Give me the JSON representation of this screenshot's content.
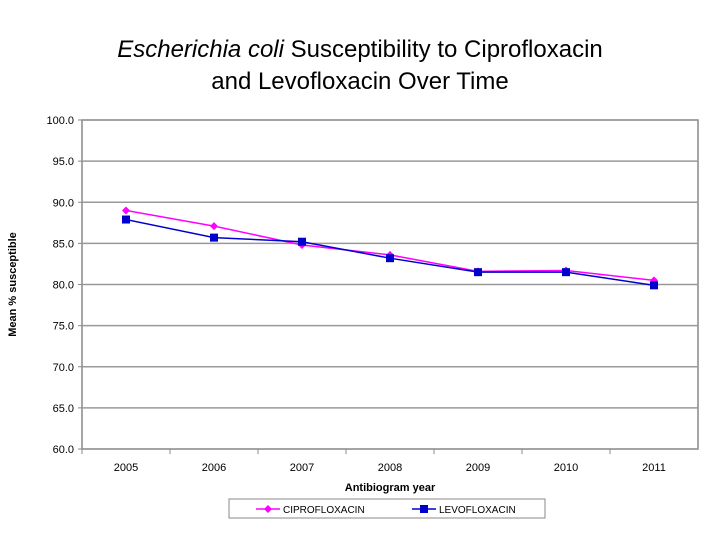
{
  "chart_data": {
    "type": "line",
    "title_italic": "Escherichia coli",
    "title_rest": " Susceptibility to Ciprofloxacin",
    "title_line2": "and Levofloxacin Over Time",
    "xlabel": "Antibiogram year",
    "ylabel": "Mean % susceptible",
    "categories": [
      "2005",
      "2006",
      "2007",
      "2008",
      "2009",
      "2010",
      "2011"
    ],
    "ylim": [
      60,
      100
    ],
    "yticks": [
      "60.0",
      "65.0",
      "70.0",
      "75.0",
      "80.0",
      "85.0",
      "90.0",
      "95.0",
      "100.0"
    ],
    "grid": true,
    "legend_position": "bottom",
    "series": [
      {
        "name": "CIPROFLOXACIN",
        "color": "#ff00ff",
        "marker": "diamond",
        "values": [
          89.0,
          87.1,
          84.8,
          83.6,
          81.6,
          81.7,
          80.5
        ]
      },
      {
        "name": "LEVOFLOXACIN",
        "color": "#0000cc",
        "marker": "square",
        "values": [
          87.9,
          85.7,
          85.2,
          83.2,
          81.5,
          81.5,
          79.9
        ]
      }
    ]
  }
}
